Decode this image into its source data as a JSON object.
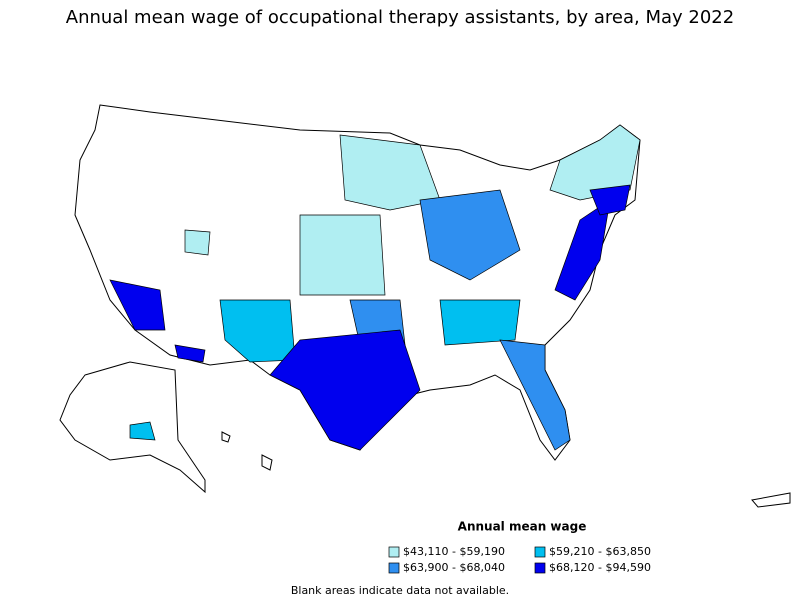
{
  "title": "Annual mean wage of occupational therapy assistants, by area, May 2022",
  "legend": {
    "title": "Annual mean wage",
    "items": [
      {
        "label": "$43,110 - $59,190",
        "color": "#b0eef2"
      },
      {
        "label": "$59,210 - $63,850",
        "color": "#00bff0"
      },
      {
        "label": "$63,900 - $68,040",
        "color": "#2f8ff0"
      },
      {
        "label": "$68,120 - $94,590",
        "color": "#0000ee"
      }
    ]
  },
  "footnote": "Blank areas indicate data not available."
}
